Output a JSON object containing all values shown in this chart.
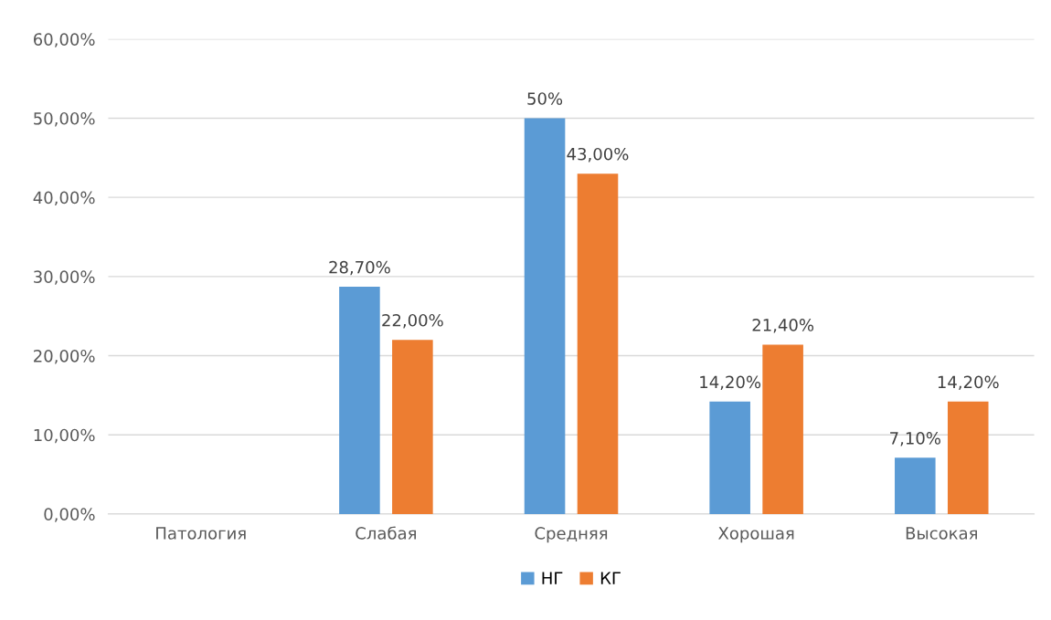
{
  "chart_data": {
    "type": "bar",
    "categories": [
      "Патология",
      "Слабая",
      "Средняя",
      "Хорошая",
      "Высокая"
    ],
    "series": [
      {
        "name": "НГ",
        "color": "#5b9bd5",
        "values": [
          null,
          28.7,
          50,
          14.2,
          7.1
        ],
        "value_labels": [
          null,
          "28,70%",
          "50%",
          "14,20%",
          "7,10%"
        ]
      },
      {
        "name": "КГ",
        "color": "#ed7d31",
        "values": [
          null,
          22,
          43,
          21.4,
          14.2
        ],
        "value_labels": [
          null,
          "22,00%",
          "43,00%",
          "21,40%",
          "14,20%"
        ]
      }
    ],
    "ylim": [
      0,
      60
    ],
    "yticks": [
      {
        "value": 0,
        "label": "0,00%"
      },
      {
        "value": 10,
        "label": "10,00%"
      },
      {
        "value": 20,
        "label": "20,00%"
      },
      {
        "value": 30,
        "label": "30,00%"
      },
      {
        "value": 40,
        "label": "40,00%"
      },
      {
        "value": 50,
        "label": "50,00%"
      },
      {
        "value": 60,
        "label": "60,00%"
      }
    ],
    "grid": "y",
    "legend": "bottom"
  }
}
